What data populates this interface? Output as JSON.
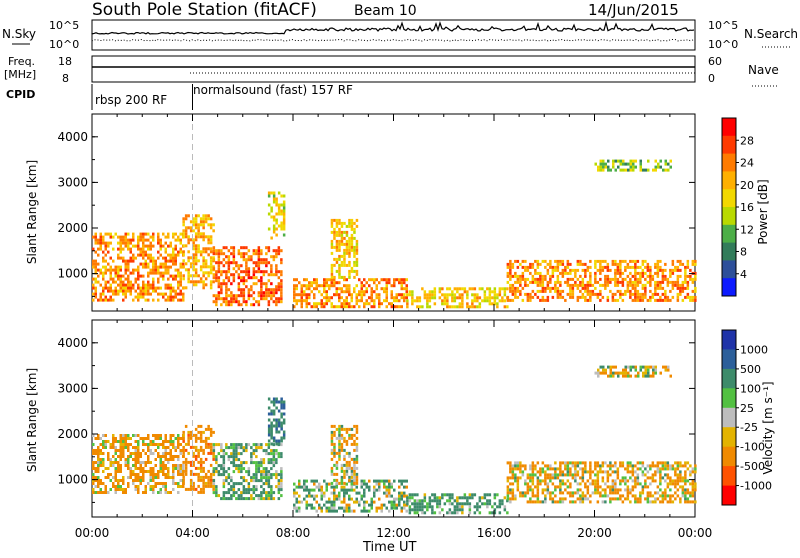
{
  "header": {
    "station": "South Pole Station (fitACF)",
    "beam": "Beam 10",
    "date": "14/Jun/2015"
  },
  "top_panels": {
    "nsky": {
      "label": "N.Sky",
      "tick_top": "10^5",
      "tick_bottom": "10^0",
      "right_tick_top": "10^5",
      "right_tick_bottom": "10^0",
      "right_label": "N.Search"
    },
    "freq": {
      "label_1": "Freq.",
      "label_2": "[MHz]",
      "tick_top": "18",
      "tick_bottom": "8",
      "right_tick_top": "60",
      "right_tick_bottom": "0",
      "right_label": "Nave"
    },
    "cpid": {
      "label": "CPID",
      "mode_1": "rbsp 200 RF",
      "mode_2": "normalsound (fast) 157 RF",
      "mode_switch_hour": 4.0
    }
  },
  "colorbars": {
    "power": {
      "label": "Power [dB]",
      "ticks": [
        "28",
        "24",
        "20",
        "16",
        "12",
        "8",
        "4"
      ],
      "colors": [
        "#ff0000",
        "#ff3a00",
        "#ff7b00",
        "#ffb000",
        "#f2d800",
        "#b9d900",
        "#4cae47",
        "#327c5a",
        "#2d4f9a",
        "#0d1bff"
      ]
    },
    "velocity": {
      "label": "Velocity [m s⁻¹]",
      "ticks": [
        "1000",
        "500",
        "100",
        "25",
        "-25",
        "-100",
        "-500",
        "-1000"
      ],
      "colors": [
        "#1f33a8",
        "#2c5f9a",
        "#3d8b6a",
        "#52c041",
        "#bdbdbd",
        "#e3b300",
        "#f08a00",
        "#ff5200",
        "#ff0000"
      ]
    }
  },
  "axes": {
    "ylabel": "Slant Range [km]",
    "xlabel": "Time UT",
    "xticks": [
      "00:00",
      "04:00",
      "08:00",
      "12:00",
      "16:00",
      "20:00",
      "00:00"
    ],
    "yticks": [
      "1000",
      "2000",
      "3000",
      "4000"
    ]
  },
  "chart_data": [
    {
      "type": "heatmap",
      "title": "",
      "xlabel": "",
      "ylabel": "Slant Range [km]",
      "xlim": [
        0,
        24
      ],
      "ylim": [
        180,
        4500
      ],
      "colorbar_label": "Power [dB]",
      "regions": [
        {
          "x": [
            0.0,
            3.6
          ],
          "y": [
            400,
            1900
          ],
          "value": 22
        },
        {
          "x": [
            3.6,
            4.8
          ],
          "y": [
            700,
            2300
          ],
          "value": 20
        },
        {
          "x": [
            4.8,
            7.5
          ],
          "y": [
            300,
            1600
          ],
          "value": 24
        },
        {
          "x": [
            7.0,
            7.6
          ],
          "y": [
            1800,
            2800
          ],
          "value": 16
        },
        {
          "x": [
            8.0,
            12.5
          ],
          "y": [
            300,
            900
          ],
          "value": 22
        },
        {
          "x": [
            9.5,
            10.5
          ],
          "y": [
            900,
            2200
          ],
          "value": 18
        },
        {
          "x": [
            12.5,
            16.5
          ],
          "y": [
            300,
            700
          ],
          "value": 18
        },
        {
          "x": [
            16.5,
            24.0
          ],
          "y": [
            400,
            1300
          ],
          "value": 22
        },
        {
          "x": [
            20.0,
            23.0
          ],
          "y": [
            3300,
            3500
          ],
          "value": 12
        }
      ]
    },
    {
      "type": "heatmap",
      "title": "",
      "xlabel": "Time UT",
      "ylabel": "Slant Range [km]",
      "xlim": [
        0,
        24
      ],
      "ylim": [
        180,
        4500
      ],
      "colorbar_label": "Velocity [m s⁻¹]",
      "regions": [
        {
          "x": [
            0.0,
            3.6
          ],
          "y": [
            700,
            2000
          ],
          "value": -150
        },
        {
          "x": [
            3.6,
            4.8
          ],
          "y": [
            700,
            2200
          ],
          "value": -300
        },
        {
          "x": [
            4.8,
            7.5
          ],
          "y": [
            600,
            1800
          ],
          "value": 150
        },
        {
          "x": [
            7.0,
            7.6
          ],
          "y": [
            1800,
            2800
          ],
          "value": 400
        },
        {
          "x": [
            8.0,
            12.5
          ],
          "y": [
            300,
            1000
          ],
          "value": 100
        },
        {
          "x": [
            9.5,
            10.5
          ],
          "y": [
            900,
            2200
          ],
          "value": -100
        },
        {
          "x": [
            12.5,
            16.5
          ],
          "y": [
            300,
            700
          ],
          "value": 200
        },
        {
          "x": [
            16.5,
            24.0
          ],
          "y": [
            500,
            1400
          ],
          "value": -120
        },
        {
          "x": [
            20.0,
            23.0
          ],
          "y": [
            3300,
            3500
          ],
          "value": -60
        }
      ]
    }
  ]
}
